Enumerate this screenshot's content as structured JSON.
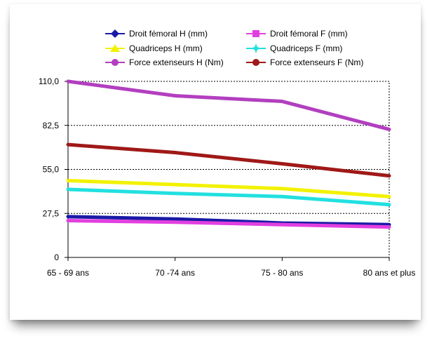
{
  "chart_data": {
    "type": "line",
    "categories": [
      "65 - 69 ans",
      "70 -74 ans",
      "75 - 80 ans",
      "80 ans et plus"
    ],
    "ylim": [
      0,
      110
    ],
    "yticks": [
      "0",
      "27,5",
      "55,0",
      "82,5",
      "110,0"
    ],
    "ytick_values": [
      0,
      27.5,
      55,
      82.5,
      110
    ],
    "grid": true,
    "legend_position": "top",
    "series": [
      {
        "name": "Droit fémoral H (mm)",
        "color": "#1a1aa6",
        "marker": "diamond",
        "values": [
          25.5,
          24,
          21.5,
          20.5
        ]
      },
      {
        "name": "Droit fémoral F (mm)",
        "color": "#e23fe0",
        "marker": "square",
        "values": [
          23,
          22,
          20.5,
          19
        ]
      },
      {
        "name": "Quadriceps H (mm)",
        "color": "#f2f200",
        "marker": "triangle",
        "values": [
          48,
          45.5,
          43,
          38
        ]
      },
      {
        "name": "Quadriceps F (mm)",
        "color": "#22e0e0",
        "marker": "star",
        "values": [
          42.5,
          40,
          38,
          33
        ]
      },
      {
        "name": "Force extenseurs H (Nm)",
        "color": "#b23fbf",
        "marker": "circle",
        "values": [
          110,
          101,
          97.5,
          80
        ]
      },
      {
        "name": "Force extenseurs F (Nm)",
        "color": "#a01818",
        "marker": "circle",
        "values": [
          70.5,
          65.5,
          58.5,
          51
        ]
      }
    ]
  }
}
